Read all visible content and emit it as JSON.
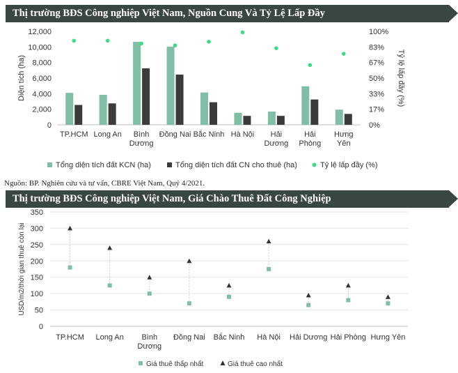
{
  "header1": {
    "title": "Thị trường BĐS Công nghiệp Việt Nam, Nguồn Cung Và Tỷ Lệ Lấp Đầy"
  },
  "header2": {
    "title": "Thị trường BĐS Công nghiệp Việt Nam, Giá Chào Thuê Đất Công Nghiệp"
  },
  "source": "Nguồn: BP. Nghiên cứu và tư vấn, CBRE Việt Nam, Quý 4/2021.",
  "colors": {
    "teal": "#7fbfa6",
    "dark": "#3b3b3b",
    "green_dot": "#3ddc84",
    "banner": "#3a4642"
  },
  "chart_data": [
    {
      "type": "bar",
      "title": "Thị trường BĐS Công nghiệp Việt Nam, Nguồn Cung Và Tỷ Lệ Lấp Đầy",
      "categories": [
        [
          "TP.HCM"
        ],
        [
          "Long An"
        ],
        [
          "Bình",
          "Dương"
        ],
        [
          "Đồng Nai"
        ],
        [
          "Bắc Ninh"
        ],
        [
          "Hà Nội"
        ],
        [
          "Hải",
          "Dương"
        ],
        [
          "Hải",
          "Phòng"
        ],
        [
          "Hưng",
          "Yên"
        ]
      ],
      "ylabel": "Diện tích (ha)",
      "y2label": "Tỷ lệ lấp đầy (%)",
      "ylim": [
        0,
        12000
      ],
      "yticks": [
        "0",
        "2,000",
        "4,000",
        "6,000",
        "8,000",
        "10,000",
        "12,000"
      ],
      "y2ticks": [
        "0%",
        "17%",
        "33%",
        "50%",
        "67%",
        "83%",
        "100%"
      ],
      "series": [
        {
          "name": "Tổng diện tích đất KCN (ha)",
          "type": "bar",
          "color": "#7fbfa6",
          "values": [
            4100,
            3850,
            10650,
            10050,
            4150,
            1550,
            1700,
            4950,
            1950
          ]
        },
        {
          "name": "Tổng diện tích đất CN cho thuê (ha)",
          "type": "bar",
          "color": "#3b3b3b",
          "values": [
            2550,
            2750,
            7250,
            6450,
            2900,
            1150,
            1150,
            3250,
            1400
          ]
        },
        {
          "name": "Tỷ lệ lấp đầy (%)",
          "type": "scatter",
          "axis": "right",
          "color": "#3ddc84",
          "values": [
            90,
            90,
            87,
            85,
            89,
            99,
            82,
            64,
            76
          ]
        }
      ],
      "legend": "bottom"
    },
    {
      "type": "scatter",
      "title": "Thị trường BĐS Công nghiệp Việt Nam, Giá Chào Thuê Đất Công Nghiệp",
      "categories": [
        [
          "TP.HCM"
        ],
        [
          "Long An"
        ],
        [
          "Bình",
          "Dương"
        ],
        [
          "Đồng Nai"
        ],
        [
          "Bắc Ninh"
        ],
        [
          "Hà Nội"
        ],
        [
          "Hải Dương"
        ],
        [
          "Hải Phòng"
        ],
        [
          "Hưng Yên"
        ]
      ],
      "ylabel": "USD/m2/thời gian thuê còn lại",
      "ylim": [
        0,
        350
      ],
      "yticks": [
        "0",
        "50",
        "100",
        "150",
        "200",
        "250",
        "300",
        "350"
      ],
      "grid": true,
      "series": [
        {
          "name": "Giá thuê thấp nhất",
          "marker": "square",
          "color": "#7fbfa6",
          "values": [
            180,
            125,
            100,
            70,
            90,
            175,
            65,
            80,
            70
          ]
        },
        {
          "name": "Giá thuê cao nhất",
          "marker": "triangle",
          "color": "#333333",
          "values": [
            300,
            240,
            150,
            200,
            125,
            260,
            95,
            125,
            90
          ]
        }
      ],
      "legend": "bottom"
    }
  ]
}
